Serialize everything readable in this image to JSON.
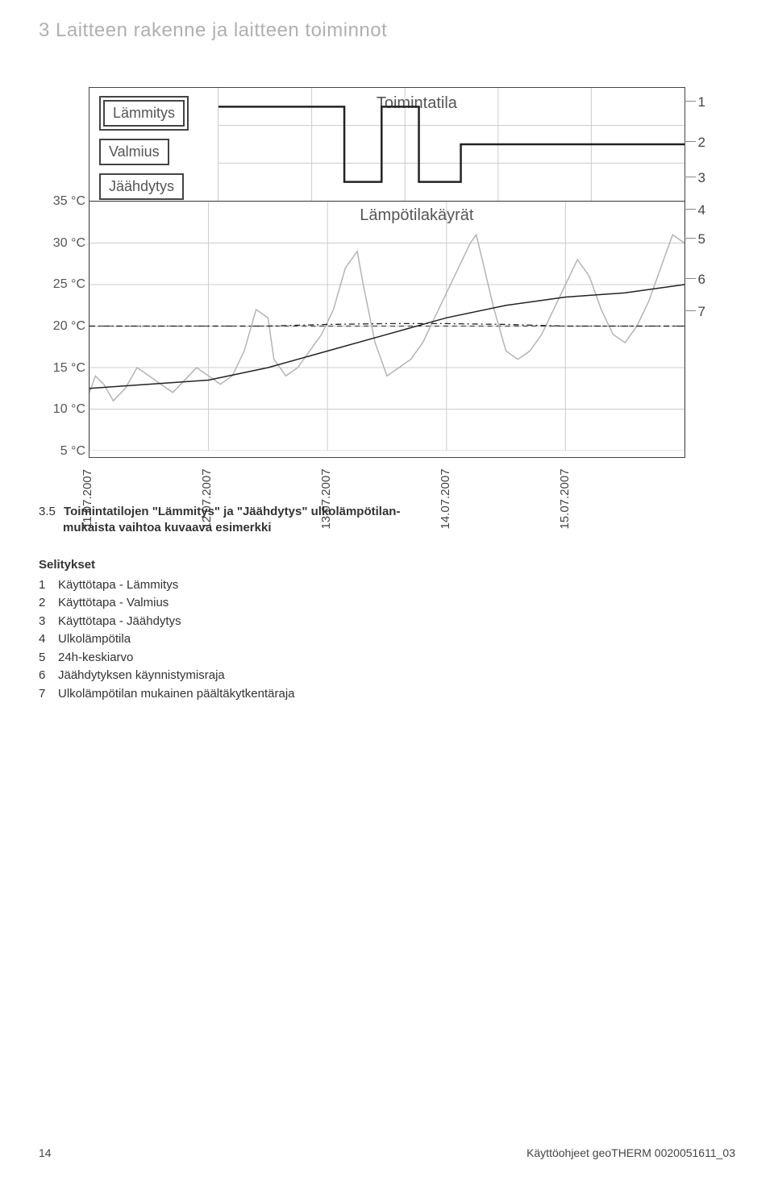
{
  "section": {
    "number": "3",
    "title": "Laitteen rakenne ja laitteen toiminnot"
  },
  "chart": {
    "mode_panel": {
      "title": "Toimintatila",
      "modes": [
        {
          "label": "Lämmitys",
          "style": "double"
        },
        {
          "label": "Valmius",
          "style": "single"
        },
        {
          "label": "Jäähdytys",
          "style": "single"
        }
      ],
      "grid_color": "#cccccc",
      "step_line_color": "#222222",
      "step_line_width": 2.5,
      "x_range": [
        0,
        5
      ],
      "levels": [
        0,
        1,
        2
      ],
      "step_points": [
        [
          0.0,
          2
        ],
        [
          1.35,
          2
        ],
        [
          1.35,
          0
        ],
        [
          1.75,
          0
        ],
        [
          1.75,
          2
        ],
        [
          2.15,
          2
        ],
        [
          2.15,
          0
        ],
        [
          2.6,
          0
        ],
        [
          2.6,
          1
        ],
        [
          5.0,
          1
        ]
      ]
    },
    "temp_chart": {
      "title": "Lämpötilakäyrät",
      "background": "#ffffff",
      "grid_color": "#cccccc",
      "x_range": [
        0,
        5
      ],
      "y_range": [
        5,
        35
      ],
      "y_ticks": [
        5,
        10,
        15,
        20,
        25,
        30,
        35
      ],
      "y_tick_labels": [
        "5 °C",
        "10 °C",
        "15 °C",
        "20 °C",
        "25 °C",
        "30 °C",
        "35 °C"
      ],
      "x_ticks": [
        0,
        1,
        2,
        3,
        4
      ],
      "x_tick_labels": [
        "11.07.2007",
        "12.07.2007",
        "13.07.2007",
        "14.07.2007",
        "15.07.2007"
      ],
      "threshold_line": {
        "y": 20,
        "color": "#444444",
        "dash": "6 5",
        "width": 1.3
      },
      "outside_temp": {
        "color": "#b4b4b4",
        "width": 1.5,
        "points": [
          [
            0,
            12
          ],
          [
            0.05,
            14
          ],
          [
            0.12,
            13
          ],
          [
            0.2,
            11
          ],
          [
            0.3,
            12.5
          ],
          [
            0.4,
            15
          ],
          [
            0.5,
            14
          ],
          [
            0.6,
            13
          ],
          [
            0.7,
            12
          ],
          [
            0.8,
            13.5
          ],
          [
            0.9,
            15
          ],
          [
            1.0,
            14
          ],
          [
            1.1,
            13
          ],
          [
            1.2,
            14
          ],
          [
            1.3,
            17
          ],
          [
            1.4,
            22
          ],
          [
            1.5,
            21
          ],
          [
            1.55,
            16
          ],
          [
            1.65,
            14
          ],
          [
            1.75,
            15
          ],
          [
            1.85,
            17
          ],
          [
            1.95,
            19
          ],
          [
            2.05,
            22
          ],
          [
            2.15,
            27
          ],
          [
            2.25,
            29
          ],
          [
            2.3,
            25
          ],
          [
            2.4,
            18
          ],
          [
            2.5,
            14
          ],
          [
            2.6,
            15
          ],
          [
            2.7,
            16
          ],
          [
            2.8,
            18
          ],
          [
            2.9,
            21
          ],
          [
            3.0,
            24
          ],
          [
            3.1,
            27
          ],
          [
            3.2,
            30
          ],
          [
            3.25,
            31
          ],
          [
            3.3,
            28
          ],
          [
            3.4,
            22
          ],
          [
            3.5,
            17
          ],
          [
            3.6,
            16
          ],
          [
            3.7,
            17
          ],
          [
            3.8,
            19
          ],
          [
            3.9,
            22
          ],
          [
            4.0,
            25
          ],
          [
            4.1,
            28
          ],
          [
            4.2,
            26
          ],
          [
            4.3,
            22
          ],
          [
            4.4,
            19
          ],
          [
            4.5,
            18
          ],
          [
            4.6,
            20
          ],
          [
            4.7,
            23
          ],
          [
            4.8,
            27
          ],
          [
            4.9,
            31
          ],
          [
            5.0,
            30
          ]
        ]
      },
      "avg_24h": {
        "color": "#222222",
        "width": 1.5,
        "points": [
          [
            0,
            12.5
          ],
          [
            0.5,
            13
          ],
          [
            1,
            13.5
          ],
          [
            1.5,
            15
          ],
          [
            2,
            17
          ],
          [
            2.5,
            19
          ],
          [
            3,
            21
          ],
          [
            3.5,
            22.5
          ],
          [
            4,
            23.5
          ],
          [
            4.5,
            24
          ],
          [
            5,
            25
          ]
        ]
      },
      "cooling_start": {
        "color": "#222222",
        "width": 1.3,
        "dash": "7 4 2 4",
        "points": [
          [
            0,
            20
          ],
          [
            0.5,
            20
          ],
          [
            1,
            20
          ],
          [
            1.5,
            20
          ],
          [
            2,
            20.2
          ],
          [
            2.5,
            20.3
          ],
          [
            3,
            20.3
          ],
          [
            3.5,
            20.2
          ],
          [
            4,
            20
          ],
          [
            4.5,
            20
          ],
          [
            5,
            20
          ]
        ]
      }
    },
    "callouts": [
      "1",
      "2",
      "3",
      "4",
      "5",
      "6",
      "7"
    ]
  },
  "caption": {
    "number": "3.5",
    "text_a": "Toimintatilojen \"Lämmitys\" ja \"Jäähdytys\" ulkolämpötilan-",
    "text_b": "mukaista vaihtoa kuvaava esimerkki"
  },
  "legend": {
    "title": "Selitykset",
    "items": [
      {
        "n": "1",
        "t": "Käyttötapa - Lämmitys"
      },
      {
        "n": "2",
        "t": "Käyttötapa - Valmius"
      },
      {
        "n": "3",
        "t": "Käyttötapa - Jäähdytys"
      },
      {
        "n": "4",
        "t": "Ulkolämpötila"
      },
      {
        "n": "5",
        "t": "24h-keskiarvo"
      },
      {
        "n": "6",
        "t": "Jäähdytyksen käynnistymisraja"
      },
      {
        "n": "7",
        "t": "Ulkolämpötilan mukainen päältäkytkentäraja"
      }
    ]
  },
  "footer": {
    "page": "14",
    "doc": "Käyttöohjeet geoTHERM 0020051611_03"
  }
}
